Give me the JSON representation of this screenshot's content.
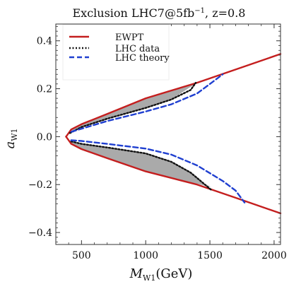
{
  "chart_data": {
    "type": "line",
    "title": "Exclusion LHC7@5fb",
    "title_sup": "−1",
    "title_tail": ", z=0.8",
    "xlabel": "M",
    "xlabel_sub": "W1",
    "xlabel_unit": "(GeV)",
    "ylabel": "a",
    "ylabel_sub": "W1",
    "xlim": [
      300,
      2050
    ],
    "ylim": [
      -0.45,
      0.47
    ],
    "xticks": [
      500,
      1000,
      1500,
      2000
    ],
    "yticks": [
      -0.4,
      -0.2,
      0.0,
      0.2,
      0.4
    ],
    "ytick_labels": [
      "−0.4",
      "−0.2",
      "0.0",
      "0.2",
      "0.4"
    ],
    "grid": false,
    "legend_position": "top-left",
    "series": [
      {
        "name": "EWPT",
        "color": "#c41e1e",
        "style": "solid",
        "segments": [
          [
            [
              380,
              0.0
            ],
            [
              420,
              0.03
            ],
            [
              500,
              0.052
            ],
            [
              700,
              0.095
            ],
            [
              1000,
              0.16
            ],
            [
              1400,
              0.225
            ],
            [
              1700,
              0.28
            ],
            [
              2050,
              0.345
            ]
          ],
          [
            [
              380,
              0.0
            ],
            [
              420,
              -0.03
            ],
            [
              500,
              -0.052
            ],
            [
              700,
              -0.09
            ],
            [
              1000,
              -0.145
            ],
            [
              1400,
              -0.2
            ],
            [
              1700,
              -0.255
            ],
            [
              2050,
              -0.32
            ]
          ]
        ]
      },
      {
        "name": "LHC data",
        "color": "#111111",
        "style": "dotted",
        "segments": [
          [
            [
              410,
              0.015
            ],
            [
              500,
              0.04
            ],
            [
              700,
              0.075
            ],
            [
              1000,
              0.12
            ],
            [
              1200,
              0.155
            ],
            [
              1350,
              0.195
            ],
            [
              1390,
              0.225
            ]
          ],
          [
            [
              420,
              -0.02
            ],
            [
              500,
              -0.03
            ],
            [
              700,
              -0.045
            ],
            [
              1000,
              -0.07
            ],
            [
              1200,
              -0.105
            ],
            [
              1350,
              -0.15
            ],
            [
              1450,
              -0.195
            ],
            [
              1510,
              -0.222
            ]
          ]
        ]
      },
      {
        "name": "LHC theory",
        "color": "#1f3fd0",
        "style": "dashed",
        "segments": [
          [
            [
              420,
              0.02
            ],
            [
              500,
              0.033
            ],
            [
              700,
              0.065
            ],
            [
              1000,
              0.105
            ],
            [
              1200,
              0.135
            ],
            [
              1400,
              0.18
            ],
            [
              1500,
              0.22
            ],
            [
              1600,
              0.26
            ]
          ],
          [
            [
              420,
              -0.015
            ],
            [
              500,
              -0.018
            ],
            [
              700,
              -0.03
            ],
            [
              1000,
              -0.05
            ],
            [
              1200,
              -0.075
            ],
            [
              1400,
              -0.12
            ],
            [
              1600,
              -0.185
            ],
            [
              1700,
              -0.225
            ],
            [
              1770,
              -0.275
            ]
          ]
        ]
      }
    ],
    "fill_color": "#aaaaaa",
    "fill_regions": [
      {
        "upper": [
          [
            410,
            0.022
          ],
          [
            500,
            0.052
          ],
          [
            700,
            0.095
          ],
          [
            1000,
            0.16
          ],
          [
            1200,
            0.19
          ],
          [
            1390,
            0.222
          ]
        ],
        "lower": [
          [
            410,
            0.015
          ],
          [
            500,
            0.04
          ],
          [
            700,
            0.075
          ],
          [
            1000,
            0.12
          ],
          [
            1200,
            0.155
          ],
          [
            1390,
            0.222
          ]
        ]
      },
      {
        "upper": [
          [
            420,
            -0.02
          ],
          [
            500,
            -0.03
          ],
          [
            700,
            -0.045
          ],
          [
            1000,
            -0.07
          ],
          [
            1200,
            -0.105
          ],
          [
            1350,
            -0.15
          ],
          [
            1450,
            -0.195
          ],
          [
            1510,
            -0.21
          ]
        ],
        "lower": [
          [
            420,
            -0.03
          ],
          [
            500,
            -0.052
          ],
          [
            700,
            -0.09
          ],
          [
            1000,
            -0.145
          ],
          [
            1200,
            -0.172
          ],
          [
            1350,
            -0.19
          ],
          [
            1450,
            -0.203
          ],
          [
            1510,
            -0.21
          ]
        ]
      }
    ]
  }
}
